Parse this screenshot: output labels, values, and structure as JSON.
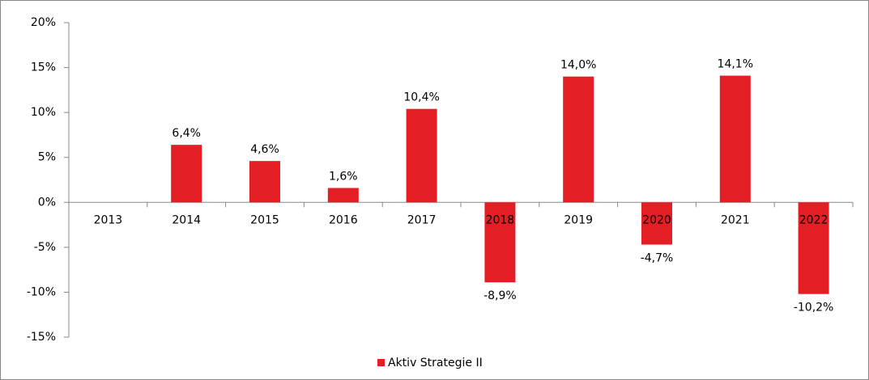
{
  "chart_data": {
    "type": "bar",
    "categories": [
      "2013",
      "2014",
      "2015",
      "2016",
      "2017",
      "2018",
      "2019",
      "2020",
      "2021",
      "2022"
    ],
    "series": [
      {
        "name": "Aktiv Strategie II",
        "color": "#e31e24",
        "values": [
          null,
          6.4,
          4.6,
          1.6,
          10.4,
          -8.9,
          14.0,
          -4.7,
          14.1,
          -10.2
        ],
        "value_labels": [
          null,
          "6,4%",
          "4,6%",
          "1,6%",
          "10,4%",
          "-8,9%",
          "14,0%",
          "-4,7%",
          "14,1%",
          "-10,2%"
        ]
      }
    ],
    "ylim": [
      -15,
      20
    ],
    "yticks": [
      {
        "value": -15,
        "label": "-15%"
      },
      {
        "value": -10,
        "label": "-10%"
      },
      {
        "value": -5,
        "label": "-5%"
      },
      {
        "value": 0,
        "label": "0%"
      },
      {
        "value": 5,
        "label": "5%"
      },
      {
        "value": 10,
        "label": "10%"
      },
      {
        "value": 15,
        "label": "15%"
      },
      {
        "value": 20,
        "label": "20%"
      }
    ],
    "grid": false,
    "legend": "bottom"
  }
}
